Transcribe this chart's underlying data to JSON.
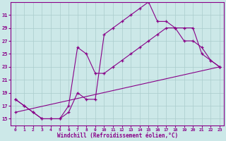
{
  "xlabel": "Windchill (Refroidissement éolien,°C)",
  "background_color": "#cce8e8",
  "line_color": "#880088",
  "grid_color": "#aacccc",
  "xlim": [
    -0.5,
    23.5
  ],
  "ylim": [
    14.0,
    33.0
  ],
  "xticks": [
    0,
    1,
    2,
    3,
    4,
    5,
    6,
    7,
    8,
    9,
    10,
    11,
    12,
    13,
    14,
    15,
    16,
    17,
    18,
    19,
    20,
    21,
    22,
    23
  ],
  "yticks": [
    15,
    17,
    19,
    21,
    23,
    25,
    27,
    29,
    31
  ],
  "lines": [
    {
      "x": [
        0,
        1,
        2,
        3,
        4,
        5,
        6,
        7,
        8,
        9,
        10,
        11,
        12,
        13,
        14,
        15,
        16,
        17,
        18,
        19,
        20,
        21,
        22,
        23
      ],
      "y": [
        18,
        17,
        16,
        15,
        15,
        15,
        16,
        19,
        18,
        18,
        28,
        29,
        30,
        31,
        32,
        33,
        30,
        30,
        29,
        27,
        27,
        26,
        24,
        23
      ]
    },
    {
      "x": [
        0,
        1,
        2,
        3,
        4,
        5,
        6,
        7,
        8,
        9,
        10,
        11,
        12,
        13,
        14,
        15,
        16,
        17,
        18,
        19,
        20,
        21,
        22,
        23
      ],
      "y": [
        18,
        17,
        16,
        15,
        15,
        15,
        17,
        26,
        25,
        22,
        22,
        23,
        24,
        25,
        26,
        27,
        28,
        29,
        29,
        29,
        29,
        25,
        24,
        23
      ]
    },
    {
      "x": [
        0,
        23
      ],
      "y": [
        16,
        23
      ]
    }
  ]
}
